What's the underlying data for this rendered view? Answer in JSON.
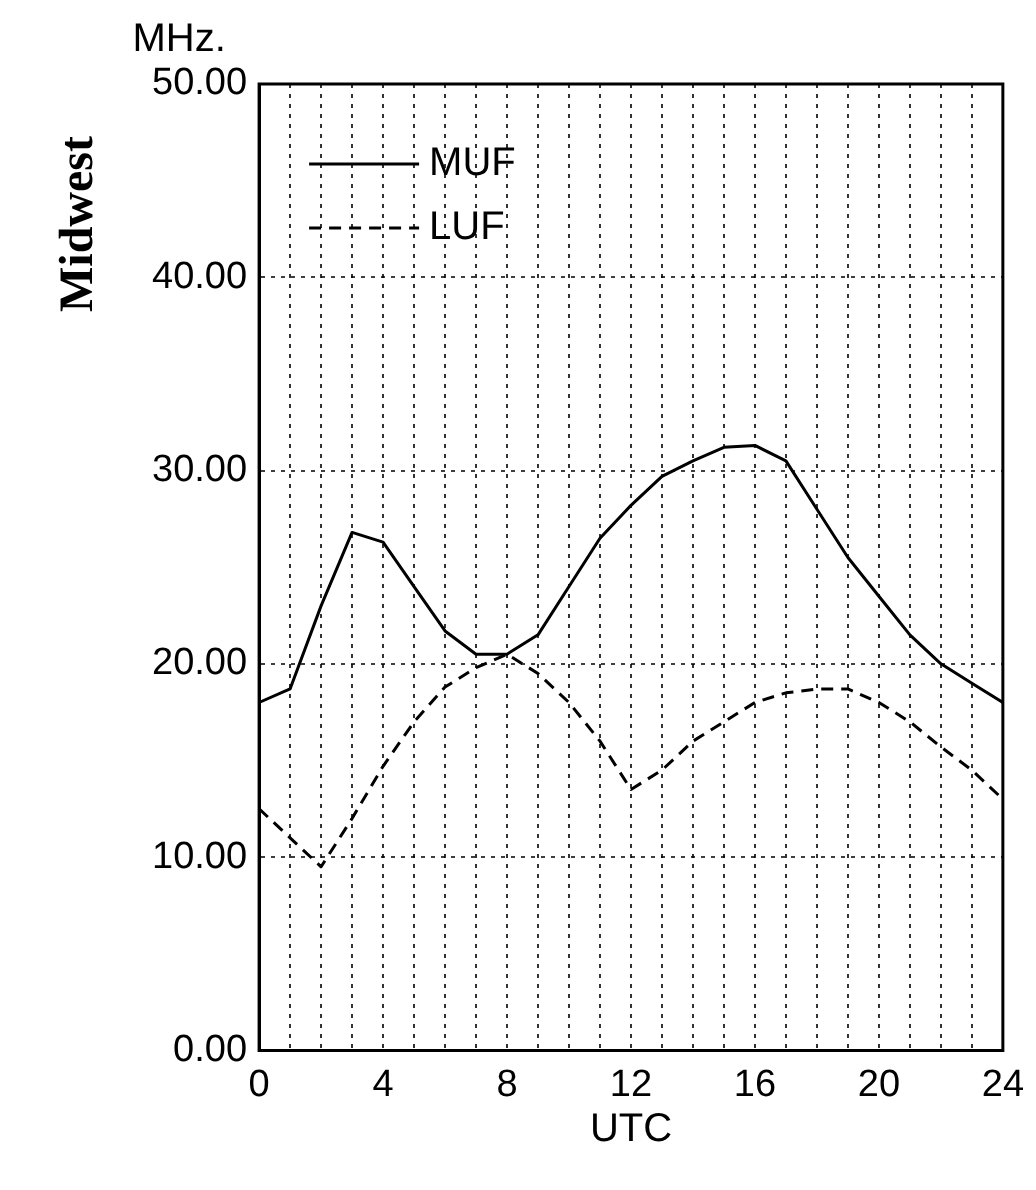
{
  "chart_data": {
    "type": "line",
    "title": "Midwest",
    "ylabel": "MHz.",
    "xlabel": "UTC",
    "x": [
      0,
      1,
      2,
      3,
      4,
      5,
      6,
      7,
      8,
      9,
      10,
      11,
      12,
      13,
      14,
      15,
      16,
      17,
      18,
      19,
      20,
      21,
      22,
      23,
      24
    ],
    "series": [
      {
        "name": "MUF",
        "color": "#000000",
        "line_style": "solid",
        "values": [
          18,
          18.7,
          23,
          26.8,
          26.3,
          24,
          21.7,
          20.5,
          20.5,
          21.5,
          24,
          26.5,
          28.2,
          29.7,
          30.5,
          31.2,
          31.3,
          30.5,
          28,
          25.5,
          23.5,
          21.5,
          20,
          19,
          18
        ]
      },
      {
        "name": "LUF",
        "color": "#000000",
        "line_style": "dashed",
        "values": [
          12.5,
          11,
          9.5,
          12,
          14.7,
          17,
          18.8,
          19.8,
          20.5,
          19.5,
          18,
          16,
          13.5,
          14.5,
          16,
          17,
          18,
          18.5,
          18.7,
          18.7,
          18,
          17,
          15.7,
          14.5,
          13
        ]
      }
    ],
    "xlim": [
      0,
      24
    ],
    "xticks": [
      0,
      {
        "value": 1,
        "label": null
      },
      {
        "value": 2,
        "label": null
      },
      {
        "value": 3,
        "label": null
      },
      4,
      {
        "value": 5,
        "label": null
      },
      {
        "value": 6,
        "label": null
      },
      {
        "value": 7,
        "label": null
      },
      8,
      {
        "value": 9,
        "label": null
      },
      {
        "value": 10,
        "label": null
      },
      {
        "value": 11,
        "label": null
      },
      12,
      {
        "value": 13,
        "label": null
      },
      {
        "value": 14,
        "label": null
      },
      {
        "value": 15,
        "label": null
      },
      16,
      {
        "value": 17,
        "label": null
      },
      {
        "value": 18,
        "label": null
      },
      {
        "value": 19,
        "label": null
      },
      20,
      {
        "value": 21,
        "label": null
      },
      {
        "value": 22,
        "label": null
      },
      {
        "value": 23,
        "label": null
      },
      24
    ],
    "ylim": [
      0,
      50
    ],
    "yticks": [
      {
        "value": 0,
        "label": "0.00"
      },
      {
        "value": 10,
        "label": "10.00"
      },
      {
        "value": 20,
        "label": "20.00"
      },
      {
        "value": 30,
        "label": "30.00"
      },
      {
        "value": 40,
        "label": "40.00"
      },
      {
        "value": 50,
        "label": "50.00"
      }
    ],
    "grid": true,
    "legend": "top left",
    "marker": "none"
  }
}
